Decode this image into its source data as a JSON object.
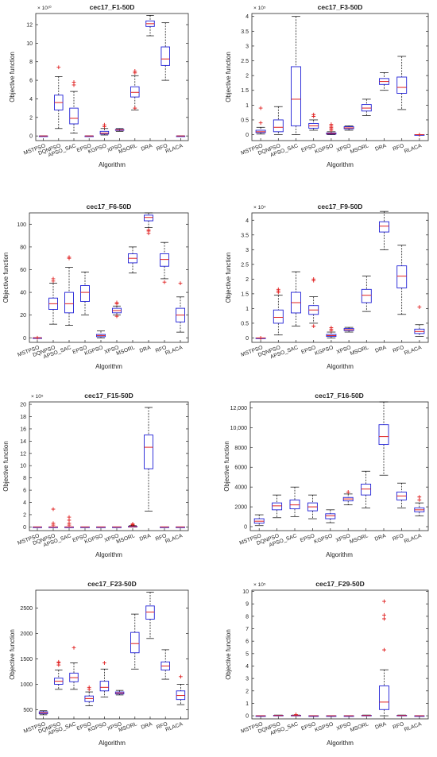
{
  "figure": {
    "xlabel": "Algorithm",
    "ylabel": "Objective function",
    "categories": [
      "MSTPSO",
      "DQNPSO",
      "APSO_SAC",
      "EPSO",
      "KGPSO",
      "XPSO",
      "MSORL",
      "DRA",
      "RFO",
      "RLACA"
    ],
    "colors": {
      "box": "#1f1fd6",
      "median": "#e02020",
      "outlier": "#e02020",
      "whisker": "#000000"
    }
  },
  "chart_data": [
    {
      "type": "boxplot",
      "title": "cec17_F1-50D",
      "exponent_label": "× 10¹⁰",
      "ylim": [
        -0.5,
        13.2
      ],
      "ticks": [
        0,
        2,
        4,
        6,
        8,
        10,
        12
      ],
      "grid": false,
      "boxes": [
        {
          "min": 0,
          "q1": 0,
          "median": 0,
          "q3": 0,
          "max": 0,
          "outliers": []
        },
        {
          "min": 0.8,
          "q1": 2.8,
          "median": 3.6,
          "q3": 4.4,
          "max": 6.4,
          "outliers": [
            7.4
          ]
        },
        {
          "min": 0.3,
          "q1": 1.3,
          "median": 1.9,
          "q3": 3.0,
          "max": 4.8,
          "outliers": [
            5.8,
            5.5
          ]
        },
        {
          "min": 0,
          "q1": 0,
          "median": 0,
          "q3": 0,
          "max": 0,
          "outliers": []
        },
        {
          "min": 0.1,
          "q1": 0.2,
          "median": 0.3,
          "q3": 0.5,
          "max": 0.8,
          "outliers": [
            1.2,
            1.0
          ]
        },
        {
          "min": 0.5,
          "q1": 0.6,
          "median": 0.65,
          "q3": 0.7,
          "max": 0.8,
          "outliers": []
        },
        {
          "min": 2.8,
          "q1": 4.2,
          "median": 4.7,
          "q3": 5.3,
          "max": 6.5,
          "outliers": [
            7.0,
            6.8,
            3.0
          ]
        },
        {
          "min": 10.8,
          "q1": 11.8,
          "median": 12.1,
          "q3": 12.4,
          "max": 13.0,
          "outliers": []
        },
        {
          "min": 6.0,
          "q1": 7.6,
          "median": 8.3,
          "q3": 9.6,
          "max": 12.2,
          "outliers": []
        },
        {
          "min": 0,
          "q1": 0,
          "median": 0,
          "q3": 0,
          "max": 0,
          "outliers": []
        }
      ]
    },
    {
      "type": "boxplot",
      "title": "cec17_F3-50D",
      "exponent_label": "× 10⁵",
      "ylim": [
        -0.2,
        4.1
      ],
      "ticks": [
        0,
        0.5,
        1,
        1.5,
        2,
        2.5,
        3,
        3.5,
        4
      ],
      "grid": false,
      "boxes": [
        {
          "min": 0.02,
          "q1": 0.07,
          "median": 0.1,
          "q3": 0.15,
          "max": 0.25,
          "outliers": [
            0.9,
            0.4
          ]
        },
        {
          "min": 0.0,
          "q1": 0.1,
          "median": 0.25,
          "q3": 0.5,
          "max": 0.95,
          "outliers": []
        },
        {
          "min": 0.0,
          "q1": 0.3,
          "median": 1.2,
          "q3": 2.3,
          "max": 4.0,
          "outliers": []
        },
        {
          "min": 0.15,
          "q1": 0.22,
          "median": 0.3,
          "q3": 0.38,
          "max": 0.5,
          "outliers": [
            0.62,
            0.68
          ]
        },
        {
          "min": 0.0,
          "q1": 0.02,
          "median": 0.04,
          "q3": 0.06,
          "max": 0.1,
          "outliers": [
            0.15,
            0.2,
            0.25,
            0.3,
            0.35
          ]
        },
        {
          "min": 0.15,
          "q1": 0.2,
          "median": 0.23,
          "q3": 0.27,
          "max": 0.3,
          "outliers": []
        },
        {
          "min": 0.65,
          "q1": 0.8,
          "median": 0.9,
          "q3": 1.02,
          "max": 1.2,
          "outliers": []
        },
        {
          "min": 1.5,
          "q1": 1.7,
          "median": 1.8,
          "q3": 1.9,
          "max": 2.1,
          "outliers": []
        },
        {
          "min": 0.85,
          "q1": 1.4,
          "median": 1.6,
          "q3": 1.95,
          "max": 2.65,
          "outliers": []
        },
        {
          "min": 0,
          "q1": 0,
          "median": 0,
          "q3": 0,
          "max": 0,
          "outliers": [
            0.0
          ]
        }
      ]
    },
    {
      "type": "boxplot",
      "title": "cec17_F6-50D",
      "exponent_label": "",
      "ylim": [
        -4,
        110
      ],
      "ticks": [
        0,
        20,
        40,
        60,
        80,
        100
      ],
      "grid": false,
      "boxes": [
        {
          "min": 0,
          "q1": 0,
          "median": 0,
          "q3": 0,
          "max": 0,
          "outliers": [
            0
          ]
        },
        {
          "min": 12,
          "q1": 25,
          "median": 30,
          "q3": 35,
          "max": 48,
          "outliers": [
            50,
            52
          ]
        },
        {
          "min": 11,
          "q1": 22,
          "median": 30,
          "q3": 40,
          "max": 62,
          "outliers": [
            70,
            71
          ]
        },
        {
          "min": 20,
          "q1": 32,
          "median": 40,
          "q3": 46,
          "max": 58,
          "outliers": []
        },
        {
          "min": 0,
          "q1": 1,
          "median": 2,
          "q3": 3,
          "max": 6,
          "outliers": []
        },
        {
          "min": 20,
          "q1": 22,
          "median": 24,
          "q3": 26,
          "max": 28,
          "outliers": [
            30,
            31,
            19
          ]
        },
        {
          "min": 57,
          "q1": 66,
          "median": 70,
          "q3": 74,
          "max": 80,
          "outliers": []
        },
        {
          "min": 97,
          "q1": 103,
          "median": 106,
          "q3": 108,
          "max": 110,
          "outliers": [
            92,
            94,
            95
          ]
        },
        {
          "min": 52,
          "q1": 63,
          "median": 69,
          "q3": 74,
          "max": 84,
          "outliers": [
            49
          ]
        },
        {
          "min": 5,
          "q1": 14,
          "median": 20,
          "q3": 26,
          "max": 36,
          "outliers": [
            48
          ]
        }
      ]
    },
    {
      "type": "boxplot",
      "title": "cec17_F9-50D",
      "exponent_label": "× 10⁴",
      "ylim": [
        -0.15,
        4.25
      ],
      "ticks": [
        0,
        0.5,
        1,
        1.5,
        2,
        2.5,
        3,
        3.5,
        4
      ],
      "grid": false,
      "boxes": [
        {
          "min": 0,
          "q1": 0,
          "median": 0,
          "q3": 0,
          "max": 0,
          "outliers": [
            0
          ]
        },
        {
          "min": 0.1,
          "q1": 0.5,
          "median": 0.7,
          "q3": 0.95,
          "max": 1.45,
          "outliers": [
            1.55,
            1.6,
            1.65
          ]
        },
        {
          "min": 0.4,
          "q1": 0.85,
          "median": 1.2,
          "q3": 1.55,
          "max": 2.25,
          "outliers": []
        },
        {
          "min": 0.5,
          "q1": 0.8,
          "median": 0.95,
          "q3": 1.1,
          "max": 1.4,
          "outliers": [
            1.95,
            2.0,
            0.4
          ]
        },
        {
          "min": 0.0,
          "q1": 0.05,
          "median": 0.08,
          "q3": 0.12,
          "max": 0.2,
          "outliers": [
            0.25,
            0.3,
            0.35
          ]
        },
        {
          "min": 0.2,
          "q1": 0.25,
          "median": 0.28,
          "q3": 0.32,
          "max": 0.36,
          "outliers": []
        },
        {
          "min": 0.9,
          "q1": 1.2,
          "median": 1.45,
          "q3": 1.65,
          "max": 2.1,
          "outliers": []
        },
        {
          "min": 3.0,
          "q1": 3.6,
          "median": 3.8,
          "q3": 3.95,
          "max": 4.3,
          "outliers": []
        },
        {
          "min": 0.8,
          "q1": 1.7,
          "median": 2.1,
          "q3": 2.45,
          "max": 3.15,
          "outliers": []
        },
        {
          "min": 0.05,
          "q1": 0.15,
          "median": 0.22,
          "q3": 0.3,
          "max": 0.45,
          "outliers": [
            1.05
          ]
        }
      ]
    },
    {
      "type": "boxplot",
      "title": "cec17_F15-50D",
      "exponent_label": "× 10⁵",
      "ylim": [
        -0.6,
        20.4
      ],
      "ticks": [
        0,
        2,
        4,
        6,
        8,
        10,
        12,
        14,
        16,
        18,
        20
      ],
      "grid": false,
      "boxes": [
        {
          "min": 0,
          "q1": 0,
          "median": 0,
          "q3": 0,
          "max": 0,
          "outliers": []
        },
        {
          "min": 0,
          "q1": 0,
          "median": 0,
          "q3": 0,
          "max": 0,
          "outliers": [
            2.9,
            0.6,
            0.3
          ]
        },
        {
          "min": 0,
          "q1": 0,
          "median": 0,
          "q3": 0,
          "max": 0,
          "outliers": [
            1.6,
            1.1,
            0.6,
            0.3
          ]
        },
        {
          "min": 0,
          "q1": 0,
          "median": 0,
          "q3": 0,
          "max": 0,
          "outliers": []
        },
        {
          "min": 0,
          "q1": 0,
          "median": 0,
          "q3": 0,
          "max": 0,
          "outliers": []
        },
        {
          "min": 0,
          "q1": 0,
          "median": 0,
          "q3": 0,
          "max": 0,
          "outliers": []
        },
        {
          "min": 0,
          "q1": 0,
          "median": 0.05,
          "q3": 0.1,
          "max": 0.2,
          "outliers": [
            0.3,
            0.4,
            0.5
          ]
        },
        {
          "min": 2.6,
          "q1": 9.5,
          "median": 13.0,
          "q3": 15.0,
          "max": 19.5,
          "outliers": []
        },
        {
          "min": 0,
          "q1": 0,
          "median": 0,
          "q3": 0,
          "max": 0,
          "outliers": []
        },
        {
          "min": 0,
          "q1": 0,
          "median": 0,
          "q3": 0,
          "max": 0,
          "outliers": []
        }
      ]
    },
    {
      "type": "boxplot",
      "title": "cec17_F16-50D",
      "exponent_label": "",
      "ylim": [
        -400,
        12600
      ],
      "ticks": [
        0,
        2000,
        4000,
        6000,
        8000,
        10000,
        12000
      ],
      "tick_labels": [
        "0",
        "2000",
        "4000",
        "6000",
        "8000",
        "10,000",
        "12,000"
      ],
      "grid": false,
      "boxes": [
        {
          "min": 100,
          "q1": 350,
          "median": 550,
          "q3": 800,
          "max": 1200,
          "outliers": []
        },
        {
          "min": 900,
          "q1": 1700,
          "median": 2100,
          "q3": 2400,
          "max": 3200,
          "outliers": []
        },
        {
          "min": 1000,
          "q1": 1800,
          "median": 2200,
          "q3": 2700,
          "max": 4000,
          "outliers": []
        },
        {
          "min": 800,
          "q1": 1600,
          "median": 2000,
          "q3": 2400,
          "max": 3200,
          "outliers": []
        },
        {
          "min": 400,
          "q1": 800,
          "median": 1100,
          "q3": 1300,
          "max": 1700,
          "outliers": []
        },
        {
          "min": 2200,
          "q1": 2600,
          "median": 2800,
          "q3": 2950,
          "max": 3300,
          "outliers": [
            3500
          ]
        },
        {
          "min": 1900,
          "q1": 3200,
          "median": 3800,
          "q3": 4300,
          "max": 5600,
          "outliers": []
        },
        {
          "min": 5200,
          "q1": 8300,
          "median": 9100,
          "q3": 10300,
          "max": 12600,
          "outliers": []
        },
        {
          "min": 1900,
          "q1": 2700,
          "median": 3100,
          "q3": 3500,
          "max": 4400,
          "outliers": []
        },
        {
          "min": 1100,
          "q1": 1500,
          "median": 1700,
          "q3": 1900,
          "max": 2400,
          "outliers": [
            3000,
            2700
          ]
        }
      ]
    },
    {
      "type": "boxplot",
      "title": "cec17_F23-50D",
      "exponent_label": "",
      "ylim": [
        320,
        2850
      ],
      "ticks": [
        500,
        1000,
        1500,
        2000,
        2500
      ],
      "grid": false,
      "boxes": [
        {
          "min": 400,
          "q1": 420,
          "median": 440,
          "q3": 460,
          "max": 480,
          "outliers": []
        },
        {
          "min": 900,
          "q1": 1000,
          "median": 1060,
          "q3": 1120,
          "max": 1280,
          "outliers": [
            1380,
            1420,
            1440
          ]
        },
        {
          "min": 900,
          "q1": 1050,
          "median": 1130,
          "q3": 1220,
          "max": 1420,
          "outliers": [
            1720
          ]
        },
        {
          "min": 580,
          "q1": 660,
          "median": 720,
          "q3": 770,
          "max": 850,
          "outliers": [
            900,
            940
          ]
        },
        {
          "min": 750,
          "q1": 870,
          "median": 940,
          "q3": 1060,
          "max": 1300,
          "outliers": [
            1420
          ]
        },
        {
          "min": 790,
          "q1": 810,
          "median": 830,
          "q3": 850,
          "max": 880,
          "outliers": []
        },
        {
          "min": 1300,
          "q1": 1620,
          "median": 1800,
          "q3": 2020,
          "max": 2380,
          "outliers": []
        },
        {
          "min": 1900,
          "q1": 2280,
          "median": 2420,
          "q3": 2540,
          "max": 2810,
          "outliers": []
        },
        {
          "min": 1100,
          "q1": 1280,
          "median": 1360,
          "q3": 1440,
          "max": 1680,
          "outliers": []
        },
        {
          "min": 600,
          "q1": 700,
          "median": 780,
          "q3": 870,
          "max": 1000,
          "outliers": [
            1150
          ]
        }
      ]
    },
    {
      "type": "boxplot",
      "title": "cec17_F29-50D",
      "exponent_label": "× 10⁵",
      "ylim": [
        -0.25,
        10.1
      ],
      "ticks": [
        0,
        1,
        2,
        3,
        4,
        5,
        6,
        7,
        8,
        9,
        10
      ],
      "grid": false,
      "boxes": [
        {
          "min": 0,
          "q1": 0,
          "median": 0,
          "q3": 0,
          "max": 0,
          "outliers": []
        },
        {
          "min": 0,
          "q1": 0,
          "median": 0.02,
          "q3": 0.04,
          "max": 0.06,
          "outliers": []
        },
        {
          "min": 0,
          "q1": 0,
          "median": 0.02,
          "q3": 0.04,
          "max": 0.06,
          "outliers": [
            0.1
          ]
        },
        {
          "min": 0,
          "q1": 0,
          "median": 0,
          "q3": 0,
          "max": 0,
          "outliers": []
        },
        {
          "min": 0,
          "q1": 0,
          "median": 0,
          "q3": 0,
          "max": 0,
          "outliers": []
        },
        {
          "min": 0,
          "q1": 0,
          "median": 0,
          "q3": 0,
          "max": 0,
          "outliers": []
        },
        {
          "min": 0,
          "q1": 0,
          "median": 0.02,
          "q3": 0.04,
          "max": 0.06,
          "outliers": []
        },
        {
          "min": 0,
          "q1": 0.5,
          "median": 1.1,
          "q3": 2.4,
          "max": 3.7,
          "outliers": [
            9.2,
            8.1,
            7.8,
            5.3
          ]
        },
        {
          "min": 0,
          "q1": 0,
          "median": 0.02,
          "q3": 0.04,
          "max": 0.06,
          "outliers": []
        },
        {
          "min": 0,
          "q1": 0,
          "median": 0,
          "q3": 0,
          "max": 0,
          "outliers": []
        }
      ]
    }
  ]
}
